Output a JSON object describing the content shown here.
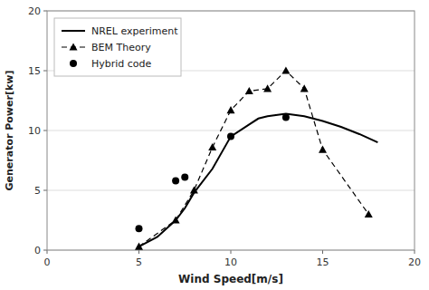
{
  "chart_data": {
    "type": "line",
    "title": "",
    "xlabel": "Wind Speed[m/s]",
    "ylabel": "Generator Power[kw]",
    "xlim": [
      0,
      20
    ],
    "ylim": [
      0,
      20
    ],
    "xticks": [
      0,
      5,
      10,
      15,
      20
    ],
    "yticks": [
      0,
      5,
      10,
      15,
      20
    ],
    "grid": "y",
    "legend": "upper left",
    "series": [
      {
        "name": "NREL experiment",
        "type": "line",
        "color": "#000000",
        "line_style": "solid",
        "x": [
          5.0,
          6.0,
          7.0,
          7.5,
          8.0,
          9.0,
          10.0,
          11.0,
          11.5,
          12.0,
          13.0,
          14.0,
          15.0,
          16.0,
          17.0,
          18.0
        ],
        "values": [
          0.3,
          1.1,
          2.5,
          3.5,
          4.8,
          6.8,
          9.5,
          10.5,
          11.0,
          11.2,
          11.4,
          11.2,
          10.8,
          10.3,
          9.7,
          9.0
        ]
      },
      {
        "name": "BEM Theory",
        "type": "line",
        "color": "#000000",
        "line_style": "dashed",
        "marker": "triangle",
        "x": [
          5.0,
          7.0,
          8.0,
          9.0,
          10.0,
          11.0,
          12.0,
          13.0,
          14.0,
          15.0,
          17.5
        ],
        "values": [
          0.3,
          2.5,
          5.0,
          8.6,
          11.7,
          13.3,
          13.5,
          15.0,
          13.5,
          8.4,
          3.0
        ]
      },
      {
        "name": "Hybrid code",
        "type": "scatter",
        "color": "#000000",
        "marker": "circle",
        "x": [
          5.0,
          7.0,
          7.5,
          10.0,
          13.0
        ],
        "values": [
          1.8,
          5.8,
          6.1,
          9.5,
          11.1
        ]
      }
    ]
  }
}
